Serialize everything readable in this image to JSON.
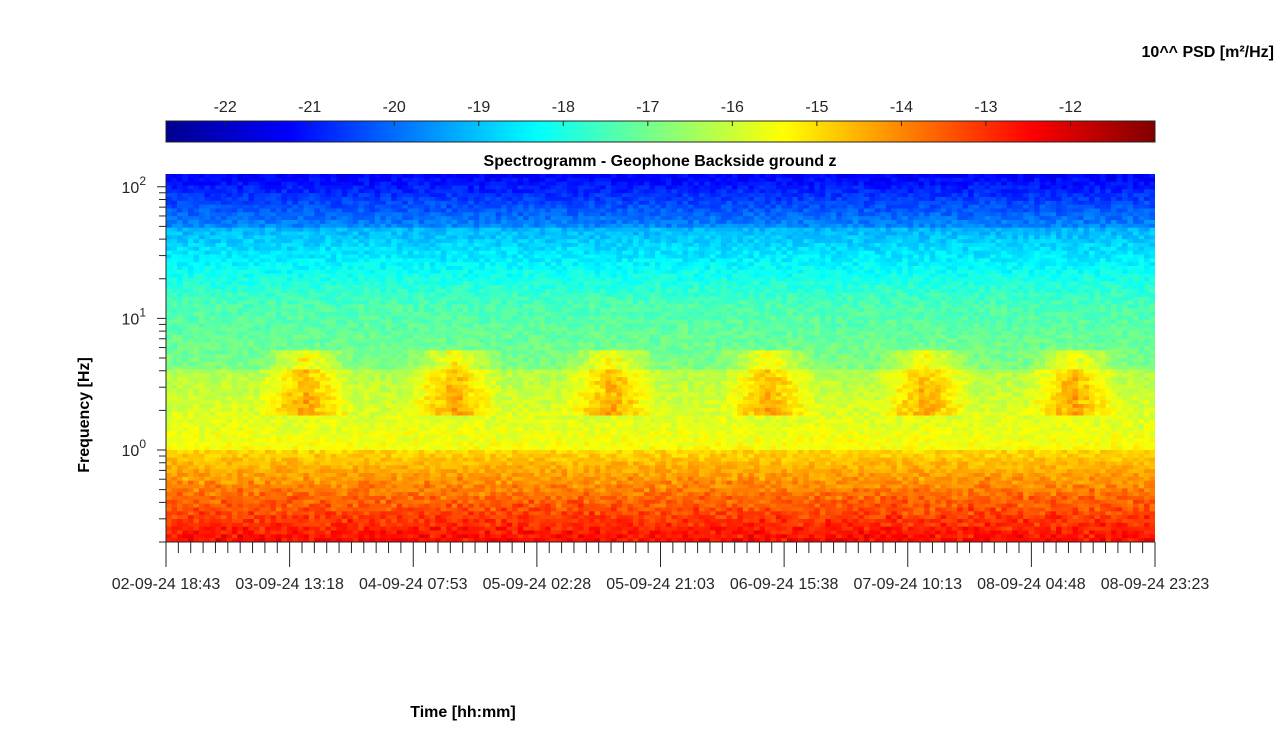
{
  "chart_data": {
    "type": "heatmap",
    "title": "Spectrogramm - Geophone Backside ground z",
    "xlabel": "Time [hh:mm]",
    "ylabel": "Frequency [Hz]",
    "colorbar": {
      "label": "10^^ PSD [m²/Hz]",
      "ticks": [
        "-22",
        "-21",
        "-20",
        "-19",
        "-18",
        "-17",
        "-16",
        "-15",
        "-14",
        "-13",
        "-12"
      ],
      "range": [
        -22.7,
        -11.0
      ],
      "colormap": "jet",
      "position": "top"
    },
    "y_scale": "log",
    "y_range": [
      0.2,
      125
    ],
    "y_ticks": [
      {
        "value": 1,
        "base": "10",
        "exp": "0"
      },
      {
        "value": 10,
        "base": "10",
        "exp": "1"
      },
      {
        "value": 100,
        "base": "10",
        "exp": "2"
      }
    ],
    "x_ticks": [
      "02-09-24  18:43",
      "03-09-24  13:18",
      "04-09-24  07:53",
      "05-09-24  02:28",
      "05-09-24  21:03",
      "06-09-24  15:38",
      "07-09-24  10:13",
      "08-09-24  04:48",
      "08-09-24  23:23"
    ],
    "x_range": [
      "02-09-24 18:43",
      "08-09-24 23:23"
    ],
    "grid": false
  }
}
